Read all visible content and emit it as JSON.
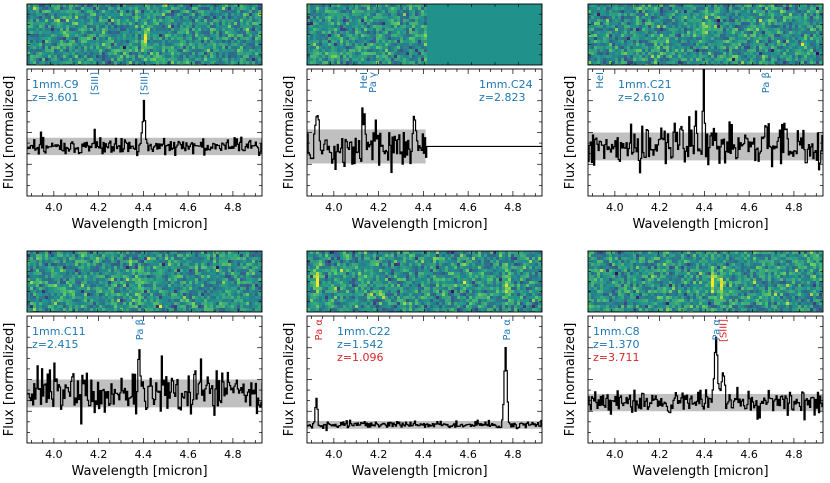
{
  "figure": {
    "xlabel": "Wavelength [micron]",
    "ylabel": "Flux [normalized]"
  },
  "chart_data": [
    {
      "type": "line",
      "object": "1mm.C9",
      "redshifts": [
        {
          "label": "z=3.601",
          "color": "#1f77b4"
        }
      ],
      "lines": [
        {
          "label": "[SIII]",
          "x": 4.18,
          "color": "#1f77b4"
        },
        {
          "label": "[SIII]",
          "x": 4.4,
          "color": "#1f77b4"
        }
      ],
      "xlim": [
        3.88,
        4.93
      ],
      "xticks": [
        "4.0",
        "4.2",
        "4.4",
        "4.6",
        "4.8"
      ],
      "ylim": [
        -1.6,
        2.5
      ],
      "series_seed": 11,
      "noise": 0.14,
      "data_end": null,
      "peaks": [
        {
          "x": 4.4,
          "h": 1.35,
          "w": 0.006
        },
        {
          "x": 4.18,
          "h": 0.5,
          "w": 0.005
        }
      ],
      "band": 0.28,
      "twod": {
        "seed": 3,
        "mask_from": null,
        "blobs": [
          {
            "x": 4.4,
            "y": 0.5,
            "a": 0.7
          }
        ]
      },
      "xlabel": "Wavelength [micron]",
      "ylabel": "Flux [normalized]"
    },
    {
      "type": "line",
      "object": "1mm.C24",
      "redshifts": [
        {
          "label": "z=2.823",
          "color": "#1f77b4"
        }
      ],
      "lines": [
        {
          "label": "HeI",
          "x": 4.13,
          "color": "#1f77b4"
        },
        {
          "label": "Pa γ",
          "x": 4.17,
          "color": "#1f77b4"
        }
      ],
      "xlim": [
        3.88,
        4.93
      ],
      "xticks": [
        "4.0",
        "4.2",
        "4.4",
        "4.6",
        "4.8"
      ],
      "ylim": [
        -1.6,
        2.5
      ],
      "series_seed": 24,
      "noise": 0.38,
      "data_end": 4.41,
      "peaks": [
        {
          "x": 4.13,
          "h": 1.1,
          "w": 0.006
        },
        {
          "x": 4.36,
          "h": 1.2,
          "w": 0.005
        },
        {
          "x": 3.92,
          "h": 0.8,
          "w": 0.005
        }
      ],
      "band": 0.55,
      "twod": {
        "seed": 8,
        "mask_from": 4.41,
        "blobs": []
      },
      "xlabel": "Wavelength [micron]",
      "ylabel": "Flux [normalized]"
    },
    {
      "type": "line",
      "object": "1mm.C21",
      "redshifts": [
        {
          "label": "z=2.610",
          "color": "#1f77b4"
        }
      ],
      "lines": [
        {
          "label": "HeI",
          "x": 3.93,
          "color": "#1f77b4"
        },
        {
          "label": "Pa β",
          "x": 4.67,
          "color": "#1f77b4"
        }
      ],
      "xlim": [
        3.88,
        4.93
      ],
      "xticks": [
        "4.0",
        "4.2",
        "4.4",
        "4.6",
        "4.8"
      ],
      "ylim": [
        -1.6,
        2.5
      ],
      "series_seed": 21,
      "noise": 0.34,
      "data_end": null,
      "peaks": [
        {
          "x": 4.395,
          "h": 2.1,
          "w": 0.005
        },
        {
          "x": 4.67,
          "h": 1.1,
          "w": 0.005
        },
        {
          "x": 4.36,
          "h": 1.2,
          "w": 0.004
        }
      ],
      "band": 0.45,
      "twod": {
        "seed": 5,
        "mask_from": null,
        "blobs": [
          {
            "x": 4.39,
            "y": 0.4,
            "a": 0.6
          }
        ]
      },
      "xlabel": "Wavelength [micron]",
      "ylabel": "Flux [normalized]"
    },
    {
      "type": "line",
      "object": "1mm.C11",
      "redshifts": [
        {
          "label": "z=2.415",
          "color": "#1f77b4"
        }
      ],
      "lines": [
        {
          "label": "Pa β",
          "x": 4.38,
          "color": "#1f77b4"
        }
      ],
      "xlim": [
        3.88,
        4.93
      ],
      "xticks": [
        "4.0",
        "4.2",
        "4.4",
        "4.6",
        "4.8"
      ],
      "ylim": [
        -1.6,
        2.5
      ],
      "series_seed": 31,
      "noise": 0.36,
      "data_end": null,
      "peaks": [
        {
          "x": 4.38,
          "h": 1.15,
          "w": 0.006
        }
      ],
      "band": 0.45,
      "twod": {
        "seed": 13,
        "mask_from": null,
        "blobs": [
          {
            "x": 4.37,
            "y": 0.5,
            "a": 0.5
          }
        ]
      },
      "xlabel": "Wavelength [micron]",
      "ylabel": "Flux [normalized]"
    },
    {
      "type": "line",
      "object": "1mm.C22",
      "redshifts": [
        {
          "label": "z=1.542",
          "color": "#1f77b4"
        },
        {
          "label": "z=1.096",
          "color": "#d62728"
        }
      ],
      "lines": [
        {
          "label": "Pa α",
          "x": 3.93,
          "color": "#d62728"
        },
        {
          "label": "Pa α",
          "x": 4.77,
          "color": "#1f77b4"
        }
      ],
      "xlim": [
        3.88,
        4.93
      ],
      "xticks": [
        "4.0",
        "4.2",
        "4.4",
        "4.6",
        "4.8"
      ],
      "ylim": [
        -0.7,
        4.2
      ],
      "series_seed": 22,
      "noise": 0.07,
      "data_end": null,
      "peaks": [
        {
          "x": 4.765,
          "h": 3.0,
          "w": 0.006
        },
        {
          "x": 3.92,
          "h": 1.0,
          "w": 0.005
        }
      ],
      "band": 0.15,
      "twod": {
        "seed": 17,
        "mask_from": null,
        "blobs": [
          {
            "x": 3.92,
            "y": 0.45,
            "a": 1.0
          },
          {
            "x": 4.77,
            "y": 0.55,
            "a": 0.9
          }
        ]
      },
      "xlabel": "Wavelength [micron]",
      "ylabel": "Flux [normalized]"
    },
    {
      "type": "line",
      "object": "1mm.C8",
      "redshifts": [
        {
          "label": "z=1.370",
          "color": "#1f77b4"
        },
        {
          "label": "z=3.711",
          "color": "#d62728"
        }
      ],
      "lines": [
        {
          "label": "Pa α",
          "x": 4.45,
          "color": "#1f77b4"
        },
        {
          "label": "[SIII]",
          "x": 4.48,
          "color": "#d62728"
        }
      ],
      "xlim": [
        3.88,
        4.93
      ],
      "xticks": [
        "4.0",
        "4.2",
        "4.4",
        "4.6",
        "4.8"
      ],
      "ylim": [
        -1.4,
        3.0
      ],
      "series_seed": 8,
      "noise": 0.22,
      "data_end": null,
      "peaks": [
        {
          "x": 4.45,
          "h": 1.9,
          "w": 0.008
        },
        {
          "x": 4.48,
          "h": 1.2,
          "w": 0.006
        }
      ],
      "band": 0.3,
      "twod": {
        "seed": 29,
        "mask_from": null,
        "blobs": [
          {
            "x": 4.43,
            "y": 0.45,
            "a": 1.1
          },
          {
            "x": 4.47,
            "y": 0.55,
            "a": 0.9
          }
        ]
      },
      "xlabel": "Wavelength [micron]",
      "ylabel": "Flux [normalized]"
    }
  ]
}
